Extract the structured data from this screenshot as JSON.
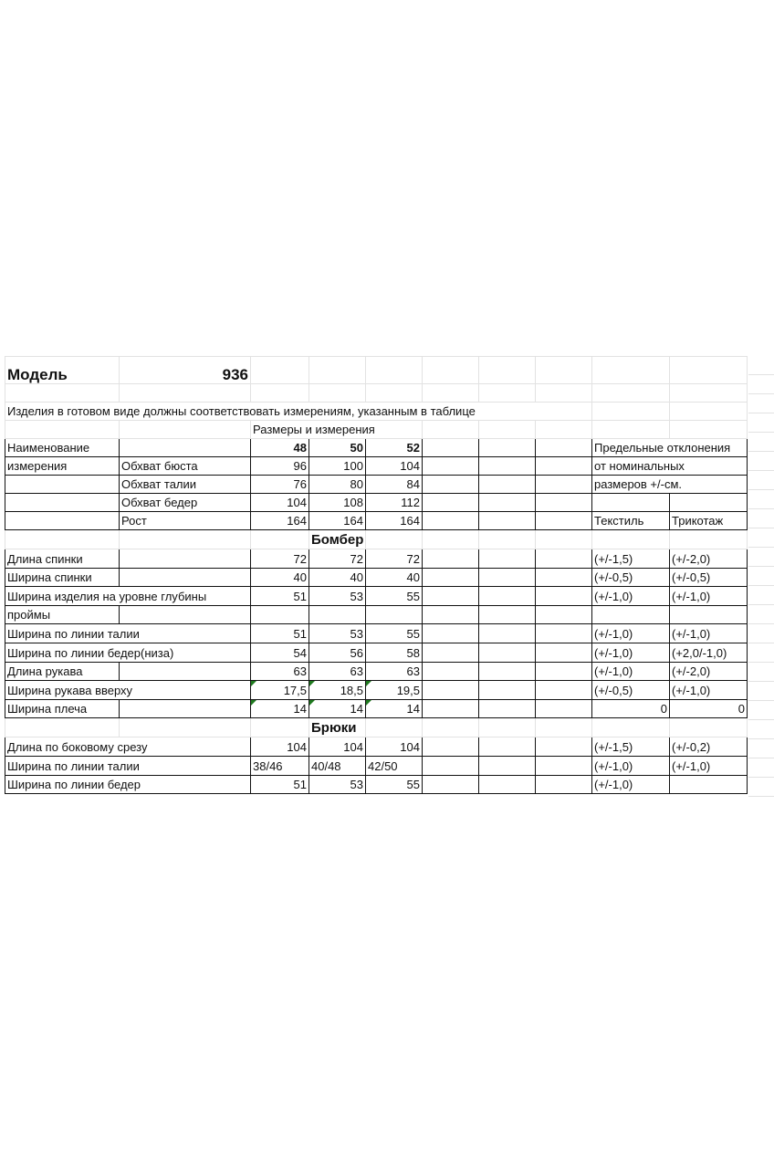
{
  "model_label": "Модель",
  "model_number": "936",
  "note": "Изделия в готовом виде должны соответствовать измерениям, указанным в таблице",
  "sizes_caption": "Размеры и измерения",
  "header_rows": [
    [
      "Наименование",
      "",
      "48",
      "50",
      "52",
      "",
      "",
      "",
      "Предельные отклонения",
      ""
    ],
    [
      "измерения",
      "Обхват бюста",
      "96",
      "100",
      "104",
      "",
      "",
      "",
      "от номинальных",
      ""
    ],
    [
      "",
      "Обхват талии",
      "76",
      "80",
      "84",
      "",
      "",
      "",
      "размеров +/-см.",
      ""
    ],
    [
      "",
      "Обхват бедер",
      "104",
      "108",
      "112",
      "",
      "",
      "",
      "",
      ""
    ],
    [
      "",
      "Рост",
      "164",
      "164",
      "164",
      "",
      "",
      "",
      "Текстиль",
      "Трикотаж"
    ]
  ],
  "sections": [
    {
      "title": "Бомбер",
      "rows": [
        [
          "Длина спинки",
          "",
          "72",
          "72",
          "72",
          "",
          "",
          "",
          "(+/-1,5)",
          "(+/-2,0)"
        ],
        [
          "Ширина спинки",
          "",
          "40",
          "40",
          "40",
          "",
          "",
          "",
          "(+/-0,5)",
          "(+/-0,5)"
        ],
        [
          "Ширина изделия на уровне глубины",
          "",
          "51",
          "53",
          "55",
          "",
          "",
          "",
          "(+/-1,0)",
          "(+/-1,0)"
        ],
        [
          "проймы",
          "",
          "",
          "",
          "",
          "",
          "",
          "",
          "",
          ""
        ],
        [
          "Ширина по линии талии",
          "",
          "51",
          "53",
          "55",
          "",
          "",
          "",
          "(+/-1,0)",
          "(+/-1,0)"
        ],
        [
          "Ширина по линии бедер(низа)",
          "",
          "54",
          "56",
          "58",
          "",
          "",
          "",
          "(+/-1,0)",
          "(+2,0/-1,0)"
        ],
        [
          "Длина рукава",
          "",
          "63",
          "63",
          "63",
          "",
          "",
          "",
          "(+/-1,0)",
          "(+/-2,0)"
        ],
        [
          "Ширина рукава вверху",
          "",
          "17,5",
          "18,5",
          "19,5",
          "",
          "",
          "",
          "(+/-0,5)",
          "(+/-1,0)"
        ],
        [
          "Ширина плеча",
          "",
          "14",
          "14",
          "14",
          "",
          "",
          "",
          "0",
          "0"
        ]
      ]
    },
    {
      "title": "Брюки",
      "rows": [
        [
          "Длина по боковому срезу",
          "",
          "104",
          "104",
          "104",
          "",
          "",
          "",
          "(+/-1,5)",
          "(+/-0,2)"
        ],
        [
          "Ширина по линии талии",
          "",
          "38/46",
          "40/48",
          "42/50",
          "",
          "",
          "",
          "(+/-1,0)",
          "(+/-1,0)"
        ],
        [
          "Ширина по линии бедер",
          "",
          "51",
          "53",
          "55",
          "",
          "",
          "",
          "(+/-1,0)",
          ""
        ]
      ]
    }
  ],
  "colors": {
    "grid": "#e2e2e2",
    "border": "#111111",
    "flag": "#1f7a1f"
  }
}
